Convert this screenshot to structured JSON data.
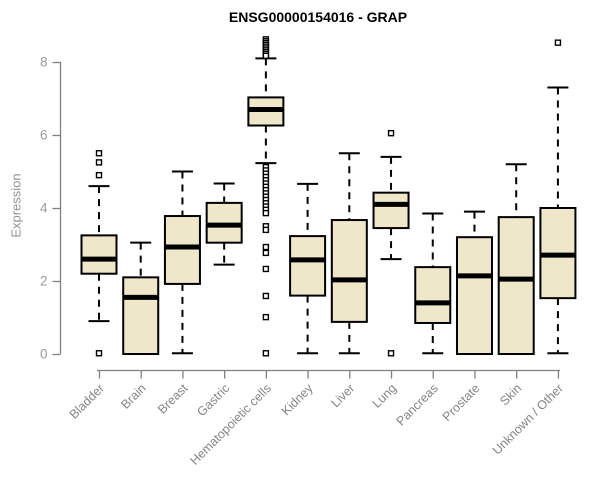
{
  "chart_data": {
    "type": "boxplot",
    "title": "ENSG00000154016 - GRAP",
    "ylabel": "Expression",
    "xlabel": "",
    "ylim": [
      0,
      8
    ],
    "yticks": [
      0,
      2,
      4,
      6,
      8
    ],
    "grid": false,
    "legend": false,
    "categories": [
      "Bladder",
      "Brain",
      "Breast",
      "Gastric",
      "Hematopoietic cells",
      "Kidney",
      "Liver",
      "Lung",
      "Pancreas",
      "Prostate",
      "Skin",
      "Unknown / Other"
    ],
    "series": [
      {
        "name": "Bladder",
        "whisker_low": 0.9,
        "q1": 2.2,
        "median": 2.6,
        "q3": 3.25,
        "whisker_high": 4.6,
        "outliers": [
          5.5,
          5.25,
          4.9,
          0.02
        ]
      },
      {
        "name": "Brain",
        "whisker_low": 0.0,
        "q1": 0.0,
        "median": 1.55,
        "q3": 2.1,
        "whisker_high": 3.05,
        "outliers": []
      },
      {
        "name": "Breast",
        "whisker_low": 0.02,
        "q1": 1.92,
        "median": 2.93,
        "q3": 3.78,
        "whisker_high": 5.0,
        "outliers": []
      },
      {
        "name": "Gastric",
        "whisker_low": 2.45,
        "q1": 3.05,
        "median": 3.53,
        "q3": 4.14,
        "whisker_high": 4.67,
        "outliers": []
      },
      {
        "name": "Hematopoietic cells",
        "whisker_low": 5.23,
        "q1": 6.26,
        "median": 6.7,
        "q3": 7.03,
        "whisker_high": 8.1,
        "outliers": [
          8.62,
          8.57,
          8.52,
          8.47,
          8.42,
          8.37,
          8.32,
          8.27,
          8.22,
          8.17,
          5.12,
          5.03,
          4.94,
          4.85,
          4.76,
          4.67,
          4.58,
          4.49,
          4.4,
          4.31,
          4.22,
          4.13,
          4.04,
          3.95,
          3.86,
          3.5,
          3.4,
          2.93,
          2.77,
          2.33,
          1.59,
          1.01,
          0.02
        ]
      },
      {
        "name": "Kidney",
        "whisker_low": 0.02,
        "q1": 1.6,
        "median": 2.58,
        "q3": 3.23,
        "whisker_high": 4.66,
        "outliers": []
      },
      {
        "name": "Liver",
        "whisker_low": 0.02,
        "q1": 0.88,
        "median": 2.03,
        "q3": 3.67,
        "whisker_high": 5.5,
        "outliers": []
      },
      {
        "name": "Lung",
        "whisker_low": 2.6,
        "q1": 3.45,
        "median": 4.1,
        "q3": 4.42,
        "whisker_high": 5.4,
        "outliers": [
          6.05,
          0.02
        ]
      },
      {
        "name": "Pancreas",
        "whisker_low": 0.02,
        "q1": 0.85,
        "median": 1.4,
        "q3": 2.38,
        "whisker_high": 3.85,
        "outliers": []
      },
      {
        "name": "Prostate",
        "whisker_low": 0.0,
        "q1": 0.0,
        "median": 2.14,
        "q3": 3.2,
        "whisker_high": 3.9,
        "outliers": []
      },
      {
        "name": "Skin",
        "whisker_low": 0.0,
        "q1": 0.0,
        "median": 2.05,
        "q3": 3.75,
        "whisker_high": 5.2,
        "outliers": []
      },
      {
        "name": "Unknown / Other",
        "whisker_low": 0.02,
        "q1": 1.53,
        "median": 2.71,
        "q3": 4.0,
        "whisker_high": 7.3,
        "outliers": [
          8.53
        ]
      }
    ],
    "colors": {
      "box_fill": "#EFE7CA",
      "box_border": "#000000",
      "median": "#000000",
      "whisker": "#000000",
      "outlier_stroke": "#000000",
      "outlier_fill": "#FFFFFF",
      "axis": "#808080",
      "y_tick_label": "#9B9B9B",
      "x_tick_label": "#858585",
      "title": "#000000"
    }
  }
}
